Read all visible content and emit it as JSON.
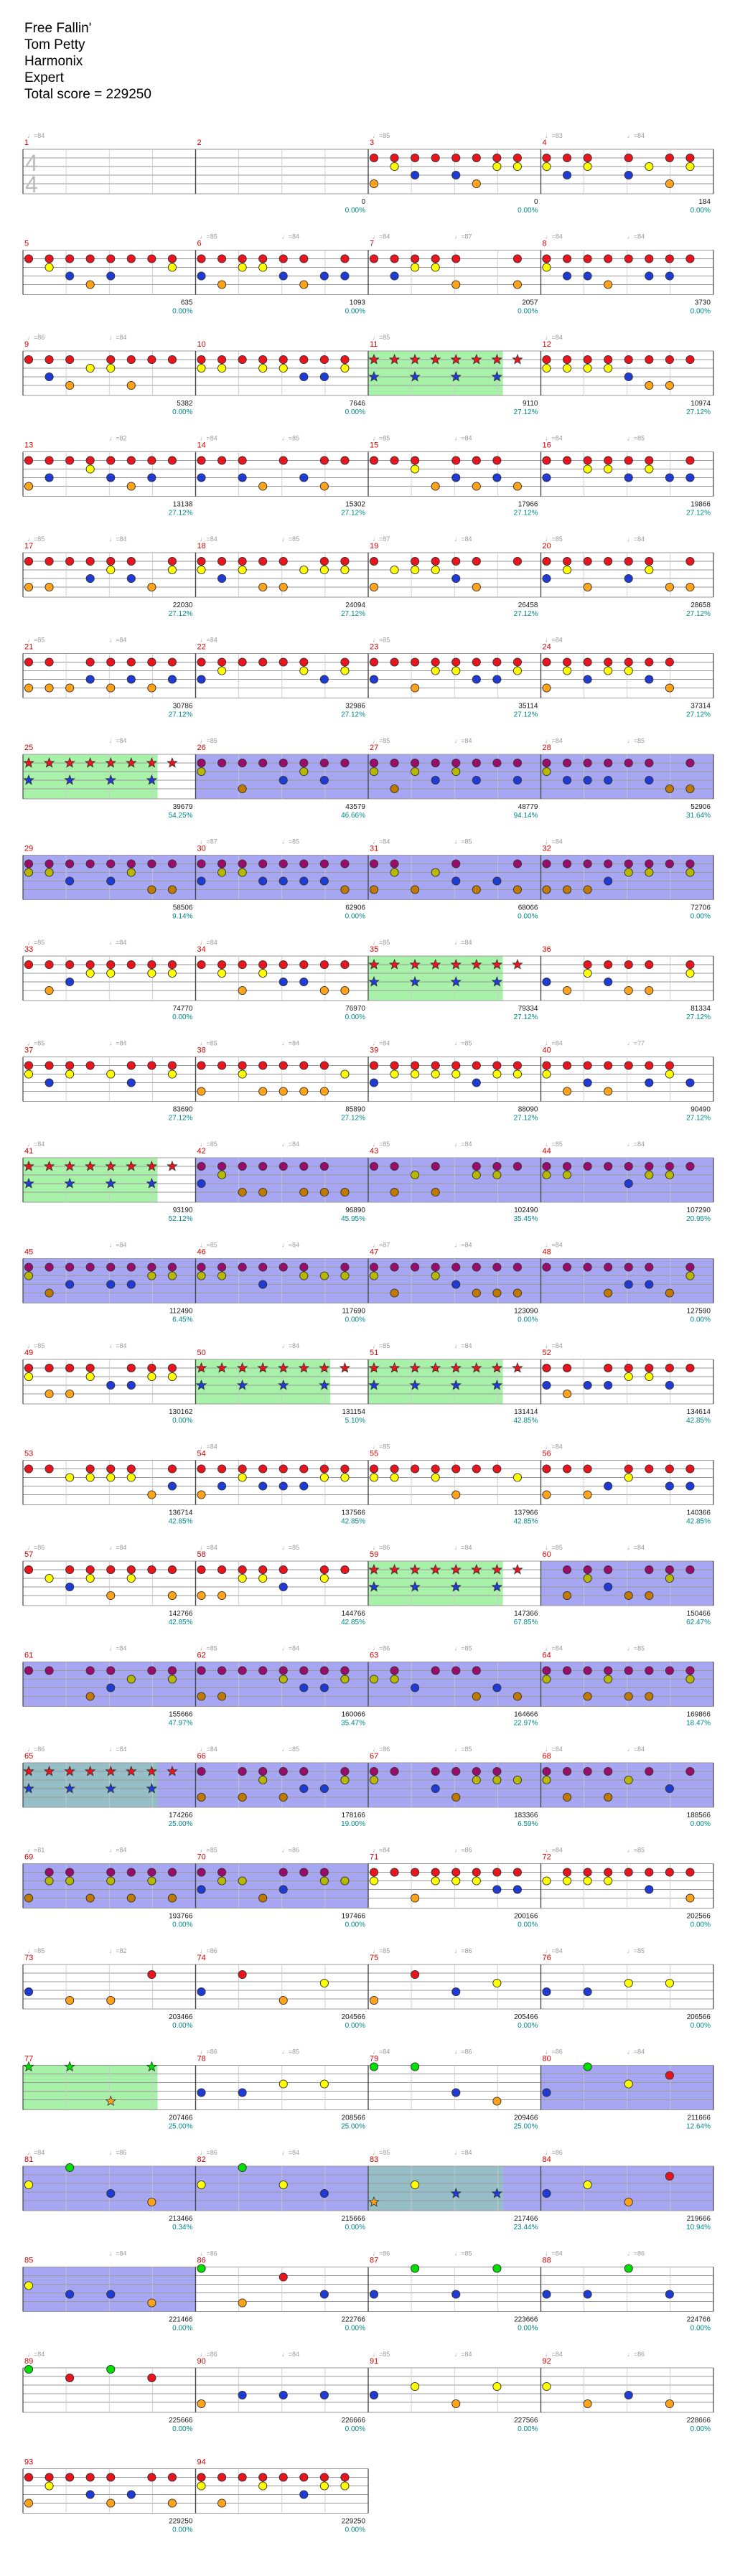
{
  "header": {
    "song_title": "Free Fallin'",
    "artist": "Tom Petty",
    "game": "Harmonix",
    "difficulty": "Expert",
    "total_score_label": "Total score = 229250"
  },
  "time_signature": {
    "numerator": "4",
    "denominator": "4"
  },
  "colors": {
    "red": "#e8141e",
    "blue": "#1f3bd6",
    "yellow": "#ffff00",
    "orange": "#ffa31a",
    "green": "#00e000",
    "purple": "#9a0c6a",
    "star_power": "#99ee99",
    "overdrive": "#8080ee",
    "staff_line": "#9a9a9a",
    "measure_number": "#d40000",
    "tempo": "#9a9a9a",
    "score": "#1a1a1a",
    "percent": "#008a8a",
    "note_outline": "#333333"
  },
  "measures": [
    {
      "n": "1",
      "bpm": "♩=84",
      "t": "",
      "s": "",
      "p": "",
      "mb": ""
    },
    {
      "n": "2",
      "bpm": "",
      "t": "",
      "s": "0",
      "p": "0.00%",
      "mb": ""
    },
    {
      "n": "3",
      "bpm": "♩=85",
      "t": "",
      "s": "0",
      "p": "0.00%",
      "mb": ""
    },
    {
      "n": "4",
      "bpm": "♩=83",
      "t": "♩=84",
      "s": "184",
      "p": "0.00%",
      "mb": ""
    },
    {
      "n": "5",
      "bpm": "",
      "t": "",
      "s": "635",
      "p": "0.00%",
      "mb": ""
    },
    {
      "n": "6",
      "bpm": "♩=85",
      "t": "♩=84",
      "s": "1093",
      "p": "0.00%",
      "mb": ""
    },
    {
      "n": "7",
      "bpm": "♩=84",
      "t": "♩=87",
      "s": "2057",
      "p": "0.00%",
      "mb": ""
    },
    {
      "n": "8",
      "bpm": "♩=84",
      "t": "♩=84",
      "s": "3730",
      "p": "0.00%",
      "mb": ""
    },
    {
      "n": "9",
      "bpm": "♩=86",
      "t": "♩=84",
      "s": "5382",
      "p": "0.00%",
      "mb": ""
    },
    {
      "n": "10",
      "bpm": "",
      "t": "",
      "s": "7646",
      "p": "0.00%",
      "mb": ""
    },
    {
      "n": "11",
      "bpm": "♩=85",
      "t": "",
      "s": "9110",
      "p": "27.12%",
      "mb": "SP"
    },
    {
      "n": "12",
      "bpm": "♩=84",
      "t": "",
      "s": "10974",
      "p": "27.12%",
      "mb": ""
    },
    {
      "n": "13",
      "bpm": "",
      "t": "♩=82",
      "s": "13138",
      "p": "27.12%",
      "mb": ""
    },
    {
      "n": "14",
      "bpm": "♩=84",
      "t": "♩=85",
      "s": "15302",
      "p": "27.12%",
      "mb": ""
    },
    {
      "n": "15",
      "bpm": "♩=85",
      "t": "♩=84",
      "s": "17966",
      "p": "27.12%",
      "mb": ""
    },
    {
      "n": "16",
      "bpm": "♩=84",
      "t": "♩=85",
      "s": "19866",
      "p": "27.12%",
      "mb": ""
    },
    {
      "n": "17",
      "bpm": "♩=85",
      "t": "♩=84",
      "s": "22030",
      "p": "27.12%",
      "mb": ""
    },
    {
      "n": "18",
      "bpm": "♩=84",
      "t": "♩=85",
      "s": "24094",
      "p": "27.12%",
      "mb": ""
    },
    {
      "n": "19",
      "bpm": "♩=87",
      "t": "♩=84",
      "s": "26458",
      "p": "27.12%",
      "mb": ""
    },
    {
      "n": "20",
      "bpm": "♩=85",
      "t": "♩=84",
      "s": "28658",
      "p": "27.12%",
      "mb": ""
    },
    {
      "n": "21",
      "bpm": "♩=85",
      "t": "♩=84",
      "s": "30786",
      "p": "27.12%",
      "mb": ""
    },
    {
      "n": "22",
      "bpm": "♩=84",
      "t": "",
      "s": "32986",
      "p": "27.12%",
      "mb": ""
    },
    {
      "n": "23",
      "bpm": "♩=85",
      "t": "",
      "s": "35114",
      "p": "27.12%",
      "mb": ""
    },
    {
      "n": "24",
      "bpm": "♩=84",
      "t": "",
      "s": "37314",
      "p": "27.12%",
      "mb": ""
    },
    {
      "n": "25",
      "bpm": "",
      "t": "♩=84",
      "s": "39679",
      "p": "54.25%",
      "mb": "SP"
    },
    {
      "n": "26",
      "bpm": "♩=85",
      "t": "",
      "s": "43579",
      "p": "46.66%",
      "mb": "OD"
    },
    {
      "n": "27",
      "bpm": "♩=85",
      "t": "♩=84",
      "s": "48779",
      "p": "94.14%",
      "mb": "OD"
    },
    {
      "n": "28",
      "bpm": "♩=84",
      "t": "♩=85",
      "s": "52906",
      "p": "31.64%",
      "mb": "OD"
    },
    {
      "n": "29",
      "bpm": "",
      "t": "",
      "s": "58506",
      "p": "9.14%",
      "mb": "OD"
    },
    {
      "n": "30",
      "bpm": "♩=87",
      "t": "♩=85",
      "s": "62906",
      "p": "0.00%",
      "mb": "OD"
    },
    {
      "n": "31",
      "bpm": "♩=84",
      "t": "♩=85",
      "s": "68066",
      "p": "0.00%",
      "mb": "OD"
    },
    {
      "n": "32",
      "bpm": "♩=84",
      "t": "",
      "s": "72706",
      "p": "0.00%",
      "mb": "OD"
    },
    {
      "n": "33",
      "bpm": "♩=85",
      "t": "♩=84",
      "s": "74770",
      "p": "0.00%",
      "mb": ""
    },
    {
      "n": "34",
      "bpm": "♩=84",
      "t": "",
      "s": "76970",
      "p": "0.00%",
      "mb": ""
    },
    {
      "n": "35",
      "bpm": "♩=85",
      "t": "♩=84",
      "s": "79334",
      "p": "27.12%",
      "mb": "SP"
    },
    {
      "n": "36",
      "bpm": "",
      "t": "",
      "s": "81334",
      "p": "27.12%",
      "mb": ""
    },
    {
      "n": "37",
      "bpm": "♩=85",
      "t": "♩=84",
      "s": "83690",
      "p": "27.12%",
      "mb": ""
    },
    {
      "n": "38",
      "bpm": "♩=85",
      "t": "♩=84",
      "s": "85890",
      "p": "27.12%",
      "mb": ""
    },
    {
      "n": "39",
      "bpm": "♩=84",
      "t": "♩=85",
      "s": "88090",
      "p": "27.12%",
      "mb": ""
    },
    {
      "n": "40",
      "bpm": "♩=84",
      "t": "♩=77",
      "s": "90490",
      "p": "27.12%",
      "mb": ""
    },
    {
      "n": "41",
      "bpm": "♩=84",
      "t": "",
      "s": "93190",
      "p": "52.12%",
      "mb": "SP"
    },
    {
      "n": "42",
      "bpm": "♩=85",
      "t": "♩=84",
      "s": "96890",
      "p": "45.95%",
      "mb": "OD"
    },
    {
      "n": "43",
      "bpm": "♩=85",
      "t": "♩=84",
      "s": "102490",
      "p": "35.45%",
      "mb": "OD"
    },
    {
      "n": "44",
      "bpm": "♩=85",
      "t": "♩=84",
      "s": "107290",
      "p": "20.95%",
      "mb": "OD"
    },
    {
      "n": "45",
      "bpm": "",
      "t": "♩=84",
      "s": "112490",
      "p": "6.45%",
      "mb": "OD"
    },
    {
      "n": "46",
      "bpm": "♩=85",
      "t": "♩=84",
      "s": "117690",
      "p": "0.00%",
      "mb": "OD"
    },
    {
      "n": "47",
      "bpm": "♩=87",
      "t": "♩=84",
      "s": "123090",
      "p": "0.00%",
      "mb": "OD"
    },
    {
      "n": "48",
      "bpm": "♩=84",
      "t": "",
      "s": "127590",
      "p": "0.00%",
      "mb": "OD"
    },
    {
      "n": "49",
      "bpm": "♩=85",
      "t": "♩=84",
      "s": "130162",
      "p": "0.00%",
      "mb": ""
    },
    {
      "n": "50",
      "bpm": "",
      "t": "♩=84",
      "s": "131154",
      "p": "5.10%",
      "mb": "SP"
    },
    {
      "n": "51",
      "bpm": "♩=85",
      "t": "♩=84",
      "s": "131414",
      "p": "42.85%",
      "mb": "SP"
    },
    {
      "n": "52",
      "bpm": "♩=84",
      "t": "",
      "s": "134614",
      "p": "42.85%",
      "mb": ""
    },
    {
      "n": "53",
      "bpm": "",
      "t": "",
      "s": "136714",
      "p": "42.85%",
      "mb": ""
    },
    {
      "n": "54",
      "bpm": "♩=84",
      "t": "",
      "s": "137566",
      "p": "42.85%",
      "mb": ""
    },
    {
      "n": "55",
      "bpm": "♩=85",
      "t": "",
      "s": "137966",
      "p": "42.85%",
      "mb": ""
    },
    {
      "n": "56",
      "bpm": "♩=84",
      "t": "",
      "s": "140366",
      "p": "42.85%",
      "mb": ""
    },
    {
      "n": "57",
      "bpm": "♩=86",
      "t": "♩=84",
      "s": "142766",
      "p": "42.85%",
      "mb": ""
    },
    {
      "n": "58",
      "bpm": "♩=84",
      "t": "♩=85",
      "s": "144766",
      "p": "42.85%",
      "mb": ""
    },
    {
      "n": "59",
      "bpm": "♩=86",
      "t": "♩=84",
      "s": "147366",
      "p": "67.85%",
      "mb": "SP"
    },
    {
      "n": "60",
      "bpm": "♩=85",
      "t": "♩=84",
      "s": "150466",
      "p": "62.47%",
      "mb": "OD"
    },
    {
      "n": "61",
      "bpm": "",
      "t": "♩=84",
      "s": "155666",
      "p": "47.97%",
      "mb": "OD"
    },
    {
      "n": "62",
      "bpm": "♩=85",
      "t": "♩=84",
      "s": "160066",
      "p": "35.47%",
      "mb": "OD"
    },
    {
      "n": "63",
      "bpm": "♩=86",
      "t": "♩=85",
      "s": "164666",
      "p": "22.97%",
      "mb": "OD"
    },
    {
      "n": "64",
      "bpm": "♩=84",
      "t": "♩=85",
      "s": "169866",
      "p": "18.47%",
      "mb": "OD"
    },
    {
      "n": "65",
      "bpm": "♩=86",
      "t": "♩=84",
      "s": "174266",
      "p": "25.00%",
      "mb": "SPOD"
    },
    {
      "n": "66",
      "bpm": "♩=84",
      "t": "♩=85",
      "s": "178166",
      "p": "19.00%",
      "mb": "OD"
    },
    {
      "n": "67",
      "bpm": "♩=86",
      "t": "♩=85",
      "s": "183366",
      "p": "6.59%",
      "mb": "OD"
    },
    {
      "n": "68",
      "bpm": "♩=84",
      "t": "♩=84",
      "s": "188566",
      "p": "0.00%",
      "mb": "OD"
    },
    {
      "n": "69",
      "bpm": "♩=81",
      "t": "♩=84",
      "s": "193766",
      "p": "0.00%",
      "mb": "OD"
    },
    {
      "n": "70",
      "bpm": "♩=85",
      "t": "♩=86",
      "s": "197466",
      "p": "0.00%",
      "mb": "OD"
    },
    {
      "n": "71",
      "bpm": "♩=84",
      "t": "♩=86",
      "s": "200166",
      "p": "0.00%",
      "mb": ""
    },
    {
      "n": "72",
      "bpm": "♩=84",
      "t": "♩=85",
      "s": "202566",
      "p": "0.00%",
      "mb": ""
    },
    {
      "n": "73",
      "bpm": "♩=85",
      "t": "♩=82",
      "s": "203466",
      "p": "0.00%",
      "mb": ""
    },
    {
      "n": "74",
      "bpm": "♩=86",
      "t": "",
      "s": "204566",
      "p": "0.00%",
      "mb": ""
    },
    {
      "n": "75",
      "bpm": "♩=85",
      "t": "♩=86",
      "s": "205466",
      "p": "0.00%",
      "mb": ""
    },
    {
      "n": "76",
      "bpm": "♩=84",
      "t": "♩=85",
      "s": "206566",
      "p": "0.00%",
      "mb": ""
    },
    {
      "n": "77",
      "bpm": "",
      "t": "",
      "s": "207466",
      "p": "25.00%",
      "mb": "SP"
    },
    {
      "n": "78",
      "bpm": "♩=86",
      "t": "♩=85",
      "s": "208566",
      "p": "25.00%",
      "mb": ""
    },
    {
      "n": "79",
      "bpm": "♩=84",
      "t": "♩=86",
      "s": "209466",
      "p": "25.00%",
      "mb": ""
    },
    {
      "n": "80",
      "bpm": "♩=86",
      "t": "♩=84",
      "s": "211666",
      "p": "12.64%",
      "mb": "OD"
    },
    {
      "n": "81",
      "bpm": "♩=84",
      "t": "♩=86",
      "s": "213466",
      "p": "0.34%",
      "mb": "OD"
    },
    {
      "n": "82",
      "bpm": "♩=86",
      "t": "♩=84",
      "s": "215666",
      "p": "0.00%",
      "mb": "OD"
    },
    {
      "n": "83",
      "bpm": "♩=85",
      "t": "♩=84",
      "s": "217466",
      "p": "23.44%",
      "mb": "SPOD"
    },
    {
      "n": "84",
      "bpm": "♩=86",
      "t": "",
      "s": "219666",
      "p": "10.94%",
      "mb": "OD"
    },
    {
      "n": "85",
      "bpm": "",
      "t": "♩=84",
      "s": "221466",
      "p": "0.00%",
      "mb": "OD"
    },
    {
      "n": "86",
      "bpm": "♩=86",
      "t": "",
      "s": "222766",
      "p": "0.00%",
      "mb": ""
    },
    {
      "n": "87",
      "bpm": "♩=86",
      "t": "♩=85",
      "s": "223666",
      "p": "0.00%",
      "mb": ""
    },
    {
      "n": "88",
      "bpm": "♩=84",
      "t": "♩=86",
      "s": "224766",
      "p": "0.00%",
      "mb": ""
    },
    {
      "n": "89",
      "bpm": "♩=84",
      "t": "",
      "s": "225666",
      "p": "0.00%",
      "mb": ""
    },
    {
      "n": "90",
      "bpm": "♩=86",
      "t": "♩=84",
      "s": "226666",
      "p": "0.00%",
      "mb": ""
    },
    {
      "n": "91",
      "bpm": "♩=85",
      "t": "♩=84",
      "s": "227566",
      "p": "0.00%",
      "mb": ""
    },
    {
      "n": "92",
      "bpm": "♩=84",
      "t": "♩=86",
      "s": "228666",
      "p": "0.00%",
      "mb": ""
    },
    {
      "n": "93",
      "bpm": "",
      "t": "",
      "s": "229250",
      "p": "0.00%",
      "mb": ""
    },
    {
      "n": "94",
      "bpm": "",
      "t": "",
      "s": "229250",
      "p": "0.00%",
      "mb": ""
    }
  ]
}
